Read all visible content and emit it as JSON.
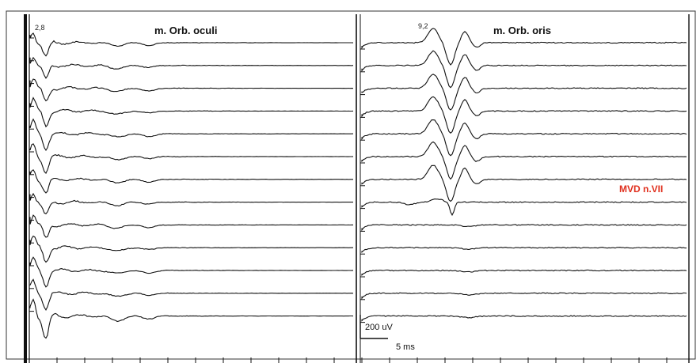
{
  "chart_data": [
    {
      "type": "line",
      "title": "m. Orb. oculi",
      "latency_label": "2,8",
      "traces": 13,
      "grid": false
    },
    {
      "type": "line",
      "title": "m. Orb. oris",
      "latency_label": "9,2",
      "traces": 13,
      "grid": false,
      "annotation": "MVD n.VII"
    }
  ],
  "scale_bar": {
    "amplitude": "200 uV",
    "time": "5 ms"
  },
  "colors": {
    "trace": "#111111",
    "frame": "#333333",
    "annotation": "#e0301e"
  }
}
